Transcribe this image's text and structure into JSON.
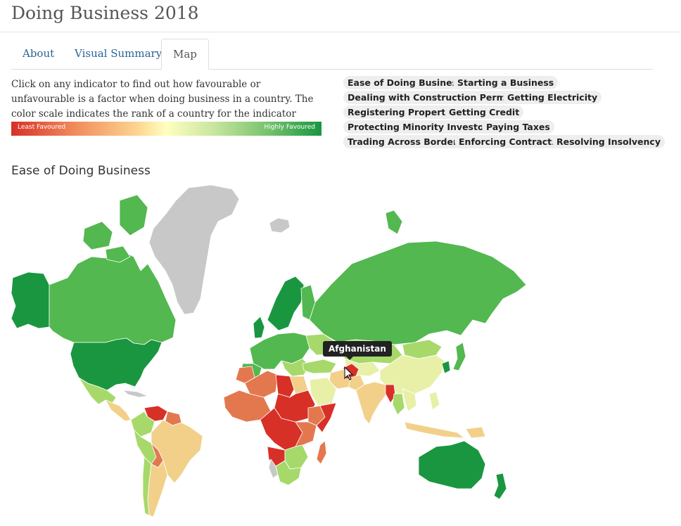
{
  "app": {
    "title": "Doing Business 2018"
  },
  "tabs": [
    {
      "label": "About",
      "active": false
    },
    {
      "label": "Visual Summary",
      "active": false
    },
    {
      "label": "Map",
      "active": true
    }
  ],
  "intro": {
    "text": "Click on any indicator to find out how favourable or unfavourable is a factor when doing business in a country. The color scale indicates the rank of a country for the indicator selected.",
    "scale_low_label": "Least Favoured",
    "scale_high_label": "Highly Favoured"
  },
  "indicators": [
    "Ease of Doing Business",
    "Starting a Business",
    "Dealing with Construction Permits",
    "Getting Electricity",
    "Registering Property",
    "Getting Credit",
    "Protecting Minority Investors",
    "Paying Taxes",
    "Trading Across Borders",
    "Enforcing Contracts",
    "Resolving Insolvency"
  ],
  "map": {
    "title": "Ease of Doing Business",
    "tooltip": "Afghanistan",
    "colors": {
      "best": "#1a9641",
      "good": "#52b84f",
      "fair": "#a6d96a",
      "mid": "#e8f0a8",
      "low": "#f2d08a",
      "poor": "#e3784f",
      "worst": "#d73027",
      "nodata": "#c8c8c8"
    }
  }
}
